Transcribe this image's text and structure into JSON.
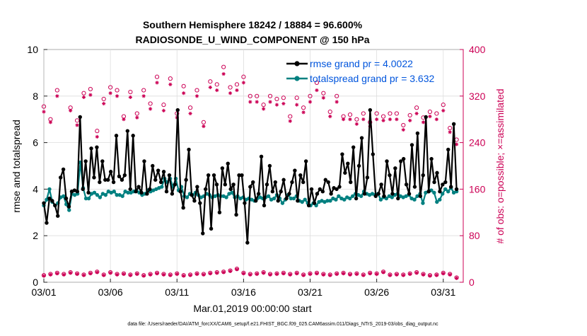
{
  "chart_data": {
    "type": "line",
    "title_line1": "Southern Hemisphere 18242 / 18884 = 96.600%",
    "title_line2": "RADIOSONDE_U_WIND_COMPONENT @ 150 hPa",
    "xlabel": "Mar.01,2019 00:00:00 start",
    "ylabel_left": "rmse and totalspread",
    "ylabel_right": "# of obs: o=possible; ×=assimilated",
    "footer": "data file: /Users/raeder/DAI/ATM_forcXX/CAM6_setup/f.e21.FHIST_BGC.f09_025.CAM6assim.011/Diags_NTrS_2019-03/obs_diag_output.nc",
    "xlim": [
      0,
      31.5
    ],
    "ylim_left": [
      0,
      10
    ],
    "ylim_right": [
      0,
      400
    ],
    "x_ticks": [
      0,
      5,
      10,
      15,
      20,
      25,
      30
    ],
    "x_tick_labels": [
      "03/01",
      "03/06",
      "03/11",
      "03/16",
      "03/21",
      "03/26",
      "03/31"
    ],
    "y_left_ticks": [
      0,
      2,
      4,
      6,
      8,
      10
    ],
    "y_left_tick_labels": [
      "0",
      "2",
      "4",
      "6",
      "8",
      "10"
    ],
    "y_right_ticks": [
      0,
      80,
      160,
      240,
      320,
      400
    ],
    "y_right_tick_labels": [
      "0",
      "80",
      "160",
      "240",
      "320",
      "400"
    ],
    "series": [
      {
        "name": "rmse",
        "legend": "rmse grand pr = 4.0022",
        "axis": "left",
        "color": "#000000",
        "values": [
          3.4,
          2.55,
          3.6,
          3.5,
          3.3,
          2.85,
          4.5,
          4.85,
          3.6,
          3.25,
          3.9,
          3.95,
          3.9,
          7.1,
          4.0,
          5.2,
          3.85,
          5.75,
          4.5,
          5.8,
          4.3,
          5.2,
          4.4,
          4.4,
          4.75,
          4.3,
          6.3,
          4.55,
          4.4,
          4.6,
          6.5,
          4.0,
          6.3,
          3.9,
          4.1,
          3.85,
          5.2,
          3.8,
          4.0,
          5.0,
          4.4,
          4.8,
          4.3,
          4.75,
          3.9,
          4.6,
          3.8,
          4.2,
          7.4,
          3.9,
          3.2,
          4.4,
          5.7,
          3.75,
          3.5,
          4.1,
          3.4,
          2.1,
          4.0,
          4.6,
          2.3,
          4.6,
          4.2,
          3.0,
          4.9,
          4.2,
          5.1,
          4.0,
          4.2,
          2.9,
          4.6,
          4.6,
          3.4,
          1.7,
          4.1,
          4.3,
          3.5,
          3.8,
          5.4,
          3.3,
          4.2,
          5.0,
          3.9,
          4.3,
          3.5,
          3.9,
          4.4,
          3.6,
          3.8,
          4.3,
          4.8,
          3.5,
          4.6,
          4.3,
          5.2,
          3.3,
          4.0,
          3.4,
          3.8,
          4.0,
          3.9,
          4.4,
          4.3,
          3.8,
          4.05,
          4.0,
          4.1,
          5.5,
          4.7,
          5.1,
          4.3,
          5.8,
          3.6,
          5.0,
          6.2,
          3.8,
          4.5,
          7.4,
          5.5,
          3.7,
          3.8,
          4.2,
          3.7,
          5.2,
          4.6,
          3.8,
          4.9,
          3.6,
          5.2,
          5.3,
          4.2,
          3.8,
          5.9,
          4.1,
          6.4,
          3.7,
          4.6,
          7.1,
          3.9,
          5.3,
          4.3,
          4.7,
          3.9,
          4.2,
          4.3,
          5.7,
          4.1,
          6.8,
          4.0
        ]
      },
      {
        "name": "totalspread",
        "legend": "totalspread grand pr = 3.632",
        "axis": "left",
        "color": "#008080",
        "values": [
          3.3,
          3.55,
          4.0,
          3.45,
          3.3,
          3.4,
          3.65,
          3.7,
          3.35,
          3.1,
          3.8,
          3.75,
          3.8,
          5.15,
          4.05,
          3.6,
          3.6,
          3.8,
          3.85,
          3.75,
          3.65,
          3.8,
          3.75,
          3.9,
          3.85,
          3.9,
          3.75,
          3.75,
          3.7,
          3.9,
          3.85,
          3.85,
          3.9,
          3.95,
          3.85,
          3.75,
          3.8,
          3.95,
          3.9,
          3.95,
          4.0,
          4.05,
          4.1,
          4.45,
          4.3,
          4.45,
          4.1,
          4.45,
          3.95,
          4.1,
          3.7,
          3.65,
          3.8,
          3.75,
          3.85,
          3.75,
          3.65,
          3.7,
          3.8,
          3.75,
          3.65,
          3.7,
          3.75,
          3.7,
          3.7,
          3.65,
          3.8,
          3.85,
          3.65,
          3.7,
          3.6,
          3.65,
          3.55,
          3.6,
          3.55,
          3.5,
          3.6,
          3.65,
          3.6,
          3.65,
          3.7,
          3.55,
          3.6,
          3.75,
          3.6,
          3.4,
          3.55,
          3.75,
          3.6,
          3.6,
          3.7,
          3.5,
          3.45,
          3.55,
          3.4,
          3.3,
          3.4,
          3.3,
          3.45,
          3.5,
          3.45,
          3.5,
          3.5,
          3.6,
          3.55,
          3.7,
          3.6,
          3.55,
          3.65,
          3.6,
          3.7,
          3.8,
          3.75,
          3.7,
          3.9,
          3.8,
          3.75,
          3.8,
          3.75,
          3.8,
          3.55,
          3.65,
          3.6,
          3.7,
          3.65,
          3.75,
          3.8,
          3.7,
          3.65,
          3.7,
          3.75,
          3.6,
          3.55,
          3.7,
          3.8,
          3.4,
          3.85,
          3.9,
          3.95,
          3.85,
          3.45,
          3.55,
          3.8,
          4.0,
          3.9,
          4.05,
          3.85,
          3.9
        ]
      }
    ],
    "obs_possible_high": {
      "marker": "circle",
      "axis": "right",
      "color": "#cc0055",
      "x": [
        0,
        0.5,
        1,
        2,
        2.5,
        3,
        3.5,
        4,
        4.5,
        5,
        5.5,
        6,
        6.5,
        7,
        7.5,
        8,
        8.5,
        9,
        9.5,
        10,
        10.5,
        11,
        11.5,
        12,
        12.5,
        13,
        13.5,
        14,
        14.5,
        15,
        15.5,
        16,
        16.5,
        17,
        17.5,
        18,
        18.5,
        19,
        19.5,
        20,
        20.5,
        21,
        21.5,
        22,
        22.5,
        23,
        23.5,
        24,
        24.5,
        25,
        25.5,
        26,
        26.5,
        27,
        27.5,
        28,
        28.5,
        29,
        29.5,
        30,
        30.5,
        31
      ],
      "values": [
        302,
        280,
        330,
        300,
        278,
        325,
        332,
        260,
        315,
        335,
        330,
        285,
        327,
        290,
        330,
        307,
        353,
        305,
        350,
        290,
        337,
        300,
        330,
        275,
        345,
        340,
        370,
        335,
        340,
        353,
        320,
        320,
        305,
        320,
        315,
        317,
        285,
        317,
        300,
        320,
        343,
        325,
        293,
        320,
        285,
        288,
        280,
        290,
        275,
        290,
        285,
        290,
        290,
        270,
        287,
        300,
        283,
        293,
        290,
        305,
        265,
        245
      ]
    },
    "obs_assimilated_high": {
      "marker": "star",
      "axis": "right",
      "color": "#cc0055",
      "x": [
        0,
        0.5,
        1,
        2,
        2.5,
        3,
        3.5,
        4,
        4.5,
        5,
        5.5,
        6,
        6.5,
        7,
        7.5,
        8,
        8.5,
        9,
        9.5,
        10,
        10.5,
        11,
        11.5,
        12,
        12.5,
        13,
        13.5,
        14,
        14.5,
        15,
        15.5,
        16,
        16.5,
        17,
        17.5,
        18,
        18.5,
        19,
        19.5,
        20,
        20.5,
        21,
        21.5,
        22,
        22.5,
        23,
        23.5,
        24,
        24.5,
        25,
        25.5,
        26,
        26.5,
        27,
        27.5,
        28,
        28.5,
        29,
        29.5,
        30,
        30.5,
        31
      ],
      "values": [
        293,
        275,
        320,
        295,
        270,
        318,
        322,
        250,
        307,
        325,
        320,
        280,
        318,
        283,
        320,
        298,
        343,
        295,
        340,
        283,
        325,
        290,
        320,
        268,
        335,
        330,
        358,
        325,
        330,
        343,
        310,
        310,
        298,
        310,
        305,
        307,
        277,
        305,
        292,
        310,
        330,
        317,
        285,
        310,
        280,
        280,
        272,
        280,
        268,
        280,
        278,
        280,
        280,
        262,
        278,
        290,
        275,
        285,
        280,
        295,
        258,
        237
      ]
    },
    "obs_possible_low": {
      "marker": "circle",
      "axis": "right",
      "color": "#cc0055",
      "x": [
        0,
        0.5,
        1,
        1.5,
        2,
        2.5,
        3,
        3.5,
        4,
        4.5,
        5,
        5.5,
        6,
        6.5,
        7,
        7.5,
        8,
        8.5,
        9,
        9.5,
        10,
        10.5,
        11,
        11.5,
        12,
        12.5,
        13,
        13.5,
        14,
        14.5,
        15,
        15.5,
        16,
        16.5,
        17,
        17.5,
        18,
        18.5,
        19,
        19.5,
        20,
        20.5,
        21,
        21.5,
        22,
        22.5,
        23,
        23.5,
        24,
        24.5,
        25,
        25.5,
        26,
        26.5,
        27,
        27.5,
        28,
        28.5,
        29,
        29.5,
        30,
        30.5,
        31
      ],
      "values": [
        12,
        14,
        16,
        14,
        17,
        15,
        13,
        16,
        18,
        13,
        17,
        14,
        15,
        13,
        15,
        12,
        14,
        16,
        14,
        13,
        15,
        12,
        13,
        15,
        14,
        16,
        17,
        18,
        20,
        23,
        16,
        14,
        15,
        17,
        14,
        15,
        16,
        14,
        16,
        13,
        15,
        16,
        14,
        13,
        15,
        16,
        14,
        15,
        13,
        16,
        15,
        18,
        13,
        14,
        13,
        15,
        17,
        14,
        12,
        13,
        16,
        14,
        8
      ]
    },
    "obs_assimilated_low": {
      "marker": "star",
      "axis": "right",
      "color": "#cc0055",
      "x": [
        0,
        0.5,
        1,
        1.5,
        2,
        2.5,
        3,
        3.5,
        4,
        4.5,
        5,
        5.5,
        6,
        6.5,
        7,
        7.5,
        8,
        8.5,
        9,
        9.5,
        10,
        10.5,
        11,
        11.5,
        12,
        12.5,
        13,
        13.5,
        14,
        14.5,
        15,
        15.5,
        16,
        16.5,
        17,
        17.5,
        18,
        18.5,
        19,
        19.5,
        20,
        20.5,
        21,
        21.5,
        22,
        22.5,
        23,
        23.5,
        24,
        24.5,
        25,
        25.5,
        26,
        26.5,
        27,
        27.5,
        28,
        28.5,
        29,
        29.5,
        30,
        30.5,
        31
      ],
      "values": [
        11,
        13,
        15,
        13,
        16,
        14,
        12,
        15,
        17,
        12,
        16,
        13,
        14,
        12,
        14,
        11,
        13,
        15,
        13,
        12,
        14,
        11,
        12,
        14,
        13,
        15,
        16,
        17,
        19,
        22,
        15,
        13,
        14,
        16,
        13,
        14,
        15,
        13,
        15,
        12,
        14,
        15,
        13,
        12,
        14,
        15,
        13,
        14,
        12,
        15,
        14,
        17,
        12,
        13,
        12,
        14,
        16,
        13,
        11,
        12,
        15,
        13,
        7
      ]
    },
    "axis_colors": {
      "left": "#000000",
      "right": "#cc0055",
      "legend_text": "#0055dd"
    }
  }
}
